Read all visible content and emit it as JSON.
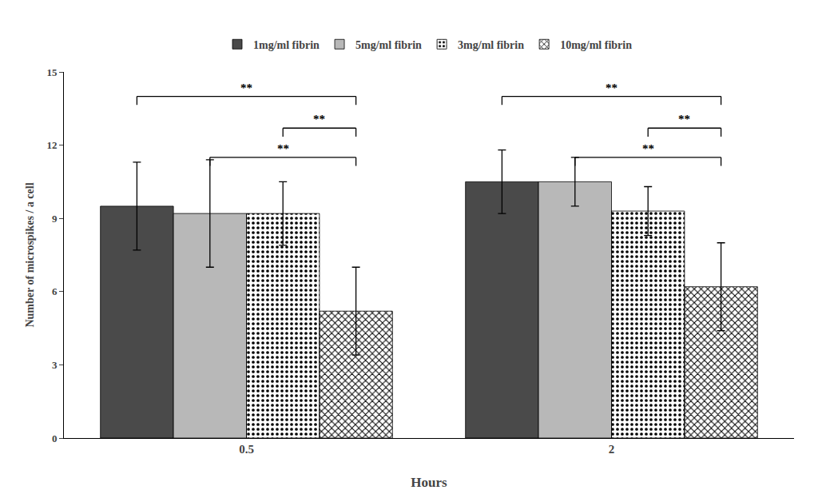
{
  "chart_data": {
    "type": "bar",
    "categories": [
      "0.5",
      "2"
    ],
    "series": [
      {
        "name": "1mg/ml fibrin",
        "color": "#4a4a4a",
        "values": [
          9.5,
          10.5
        ],
        "errors": [
          1.8,
          1.3
        ]
      },
      {
        "name": "5mg/ml fibrin",
        "color": "#b8b8b8",
        "values": [
          9.2,
          10.5
        ],
        "errors": [
          2.2,
          1.0
        ]
      },
      {
        "name": "3mg/ml fibrin",
        "color": "#888888",
        "values": [
          9.2,
          9.3
        ],
        "errors": [
          1.3,
          1.0
        ]
      },
      {
        "name": "10mg/ml fibrin",
        "color": "#555555",
        "values": [
          5.2,
          6.2
        ],
        "errors": [
          1.8,
          1.8
        ]
      }
    ],
    "xlabel": "Hours",
    "ylabel": "Number of microspikes / a cell",
    "ylim": [
      0,
      15
    ],
    "yticks": [
      0,
      3,
      6,
      9,
      12,
      15
    ],
    "grid": false,
    "legend": "top",
    "annotations": [
      {
        "text": "**",
        "category": "0.5",
        "from": "1mg/ml fibrin",
        "to": "10mg/ml fibrin",
        "y": 14.0
      },
      {
        "text": "**",
        "category": "0.5",
        "from": "3mg/ml fibrin",
        "to": "10mg/ml fibrin",
        "y": 12.7
      },
      {
        "text": "**",
        "category": "0.5",
        "from": "5mg/ml fibrin",
        "to": "10mg/ml fibrin",
        "y": 11.5
      },
      {
        "text": "**",
        "category": "2",
        "from": "1mg/ml fibrin",
        "to": "10mg/ml fibrin",
        "y": 14.0
      },
      {
        "text": "**",
        "category": "2",
        "from": "3mg/ml fibrin",
        "to": "10mg/ml fibrin",
        "y": 12.7
      },
      {
        "text": "**",
        "category": "2",
        "from": "5mg/ml fibrin",
        "to": "10mg/ml fibrin",
        "y": 11.5
      }
    ]
  }
}
